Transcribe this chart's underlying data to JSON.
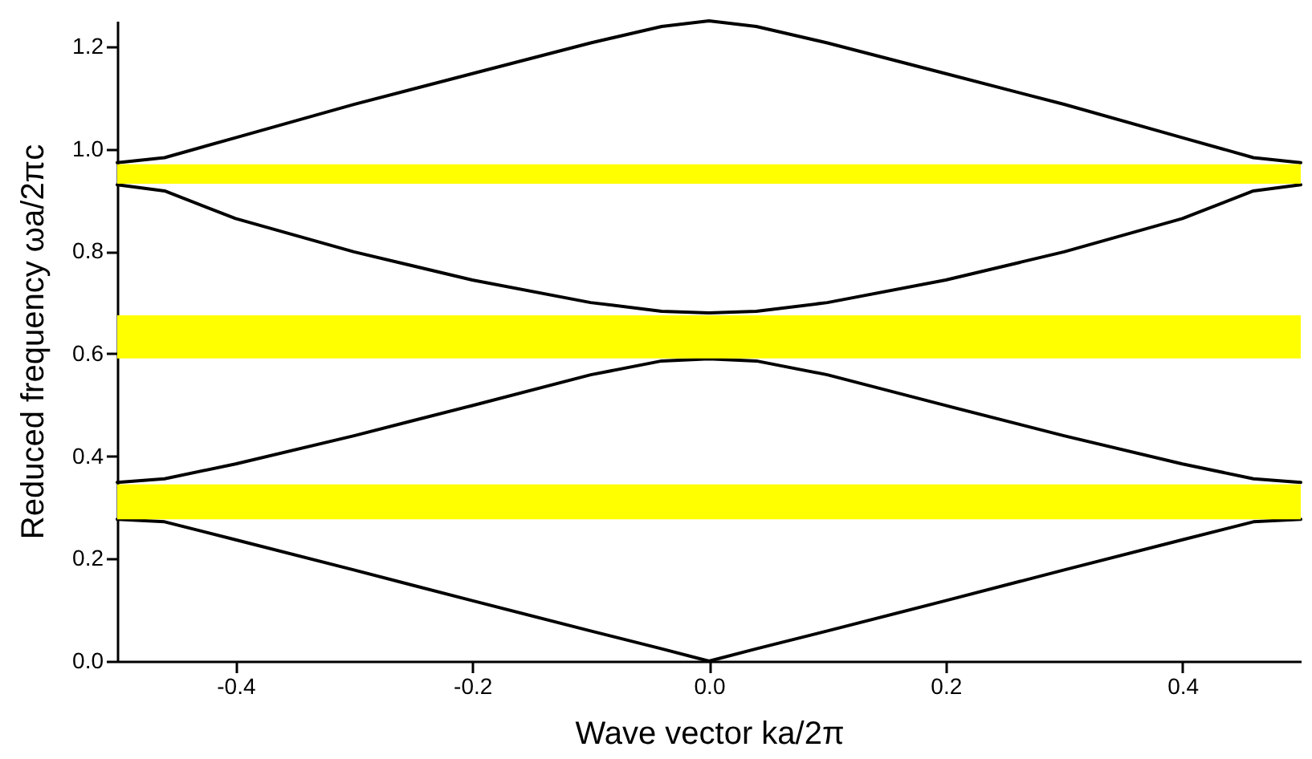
{
  "chart_data": {
    "type": "line",
    "xlabel": "Wave vector ka/2π",
    "ylabel": "Reduced frequency ωa/2πc",
    "x": [
      -0.5,
      -0.46,
      -0.4,
      -0.3,
      -0.2,
      -0.1,
      -0.04,
      0,
      0.04,
      0.1,
      0.2,
      0.3,
      0.4,
      0.46,
      0.5
    ],
    "series": [
      {
        "color": "#000000",
        "values": [
          0.277,
          0.272,
          0.237,
          0.178,
          0.118,
          0.059,
          0.024,
          0,
          0.024,
          0.059,
          0.118,
          0.178,
          0.237,
          0.272,
          0.277
        ]
      },
      {
        "color": "#000000",
        "values": [
          0.349,
          0.356,
          0.385,
          0.44,
          0.499,
          0.559,
          0.586,
          0.59,
          0.586,
          0.559,
          0.499,
          0.44,
          0.385,
          0.356,
          0.349
        ]
      },
      {
        "color": "#000000",
        "values": [
          0.93,
          0.918,
          0.864,
          0.799,
          0.744,
          0.7,
          0.683,
          0.68,
          0.683,
          0.7,
          0.744,
          0.799,
          0.864,
          0.918,
          0.93
        ]
      },
      {
        "color": "#000000",
        "values": [
          0.973,
          0.983,
          1.022,
          1.087,
          1.147,
          1.207,
          1.239,
          1.25,
          1.239,
          1.207,
          1.147,
          1.087,
          1.022,
          0.983,
          0.973
        ]
      }
    ],
    "bands": [
      {
        "axis": "y",
        "from": 0.277,
        "to": 0.345,
        "color": "#ffff00"
      },
      {
        "axis": "y",
        "from": 0.591,
        "to": 0.675,
        "color": "#ffff00"
      },
      {
        "axis": "y",
        "from": 0.932,
        "to": 0.97,
        "color": "#ffff00"
      }
    ],
    "xlim": [
      -0.5,
      0.5
    ],
    "xticks": [
      -0.4,
      -0.2,
      {
        "value": 0,
        "label": "0.0"
      },
      0.2,
      0.4
    ],
    "ylim": [
      0,
      1.25
    ],
    "yticks": [
      {
        "value": 0,
        "label": "0.0"
      },
      0.2,
      0.4,
      0.6,
      0.8,
      {
        "value": 1,
        "label": "1.0"
      },
      1.2
    ],
    "marker": "none",
    "line_style": "solid"
  }
}
